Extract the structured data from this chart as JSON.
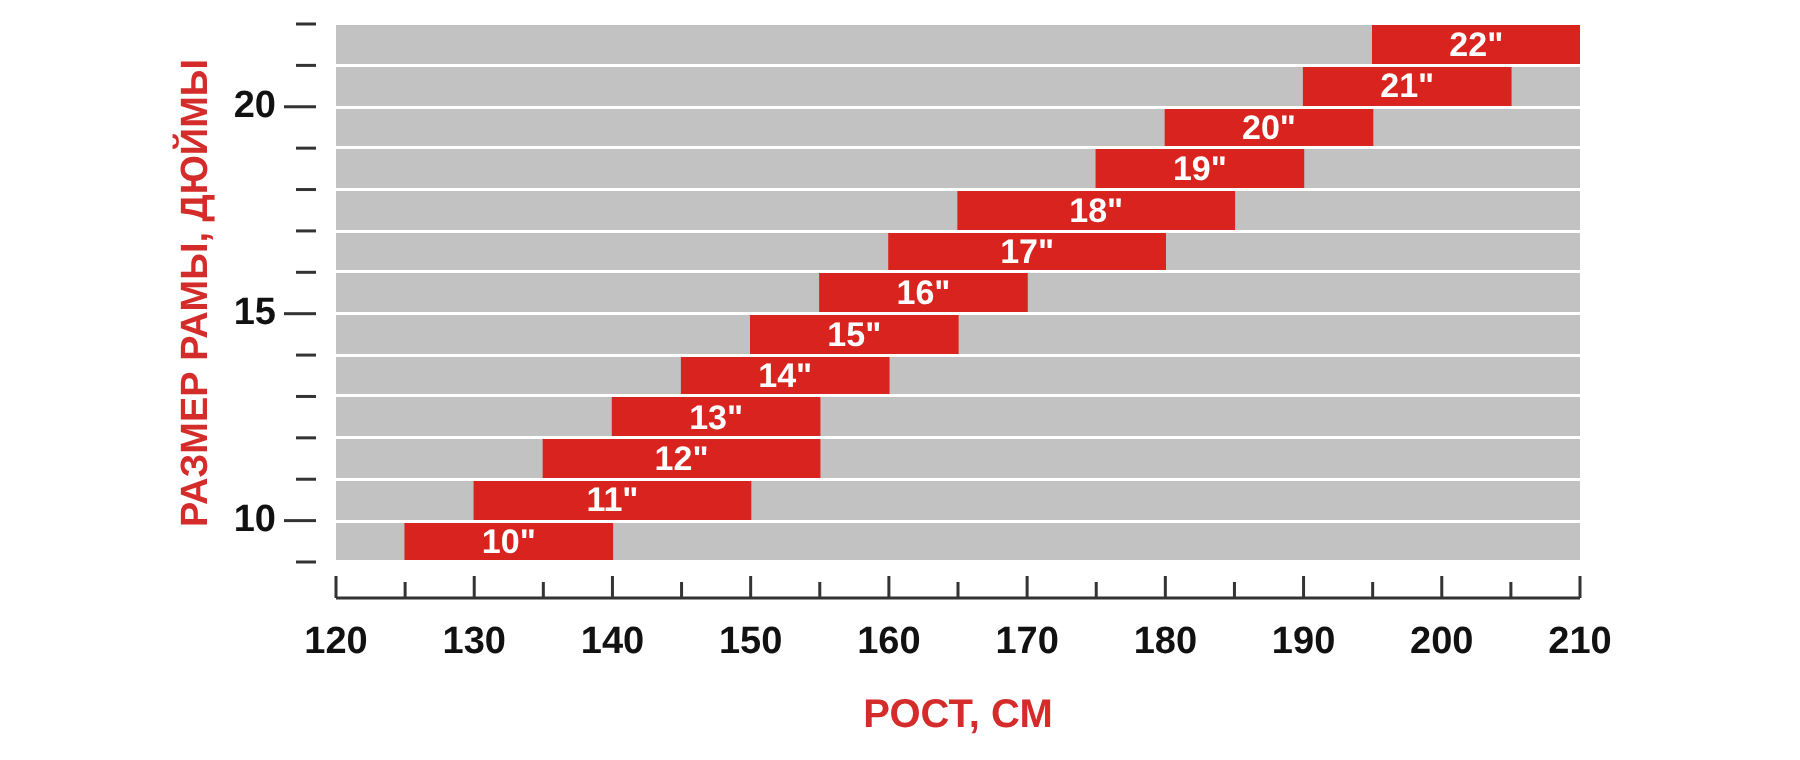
{
  "chart_data": {
    "type": "bar",
    "orientation": "horizontal",
    "xlabel": "РОСТ, СМ",
    "ylabel": "РАЗМЕР РАМЫ, ДЮЙМЫ",
    "x": [
      9.5,
      10.5,
      11.5,
      12.5,
      13.5,
      14.5,
      15.5,
      16.5,
      17.5,
      18.5,
      19.5,
      20.5,
      21.5
    ],
    "base": [
      125,
      130,
      135,
      140,
      145,
      150,
      155,
      160,
      165,
      175,
      180,
      190,
      195
    ],
    "values": [
      15,
      20,
      20,
      15,
      15,
      15,
      15,
      20,
      20,
      15,
      15,
      15,
      15
    ],
    "annotations": [
      "10\"",
      "11\"",
      "12\"",
      "13\"",
      "14\"",
      "15\"",
      "16\"",
      "17\"",
      "18\"",
      "19\"",
      "20\"",
      "21\"",
      "22\""
    ],
    "color": "#d9231f",
    "xlim": [
      120,
      210
    ],
    "xticks": [
      120,
      {
        "value": 125,
        "label": null
      },
      130,
      {
        "value": 135,
        "label": null
      },
      140,
      {
        "value": 145,
        "label": null
      },
      150,
      {
        "value": 155,
        "label": null
      },
      160,
      {
        "value": 165,
        "label": null
      },
      170,
      {
        "value": 175,
        "label": null
      },
      180,
      {
        "value": 185,
        "label": null
      },
      190,
      {
        "value": 195,
        "label": null
      },
      200,
      {
        "value": 205,
        "label": null
      },
      210
    ],
    "ylim": [
      9,
      22
    ],
    "yticks": [
      {
        "value": 9,
        "label": null
      },
      10,
      {
        "value": 11,
        "label": null
      },
      {
        "value": 12,
        "label": null
      },
      {
        "value": 13,
        "label": null
      },
      {
        "value": 14,
        "label": null
      },
      15,
      {
        "value": 16,
        "label": null
      },
      {
        "value": 17,
        "label": null
      },
      {
        "value": 18,
        "label": null
      },
      {
        "value": 19,
        "label": null
      },
      20,
      {
        "value": 21,
        "label": null
      },
      {
        "value": 22,
        "label": null
      }
    ],
    "grid": "y"
  }
}
